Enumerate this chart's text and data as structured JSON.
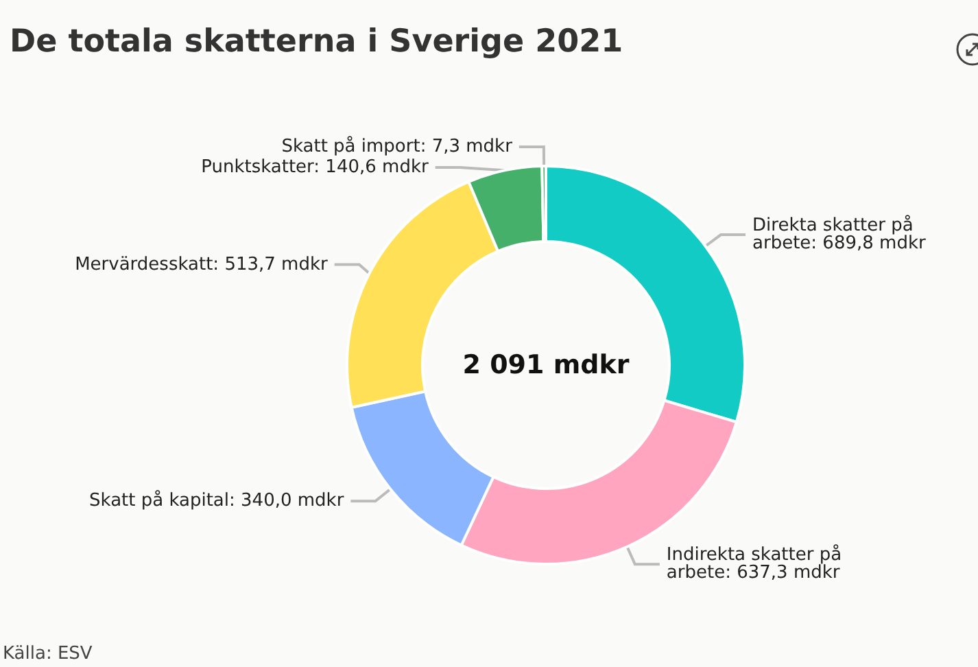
{
  "chart_data": {
    "type": "donut",
    "title": "De totala skatterna i Sverige 2021",
    "categories": [
      "Direkta skatter på arbete",
      "Indirekta skatter på arbete",
      "Skatt på kapital",
      "Mervärdesskatt",
      "Punktskatter",
      "Skatt på import"
    ],
    "values": [
      689.8,
      637.3,
      340.0,
      513.7,
      140.6,
      7.3
    ],
    "value_labels": [
      "689,8 mdkr",
      "637,3 mdkr",
      "340,0 mdkr",
      "513,7 mdkr",
      "140,6 mdkr",
      "7,3 mdkr"
    ],
    "colors": [
      "#13cbc5",
      "#ffa5c0",
      "#8cb5ff",
      "#ffe056",
      "#45b06a",
      "#45b06a"
    ],
    "annotations": [
      "2 091 mdkr",
      "Källa: ESV"
    ]
  }
}
